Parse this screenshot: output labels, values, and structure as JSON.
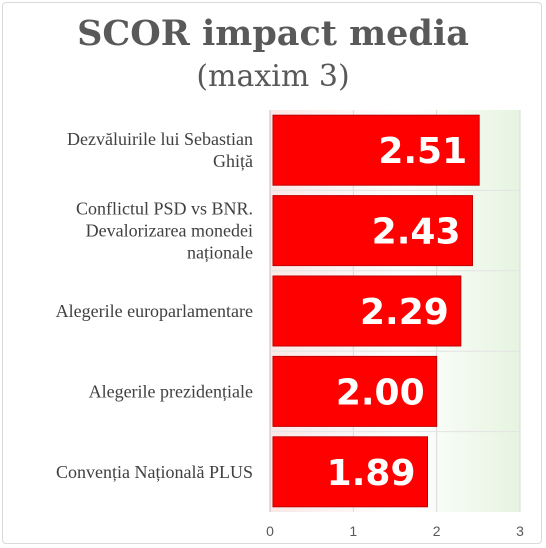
{
  "chart_data": {
    "type": "bar",
    "orientation": "horizontal",
    "title": "SCOR impact media",
    "subtitle": "(maxim 3)",
    "categories": [
      [
        "Dezvăluirile lui Sebastian",
        "Ghiță"
      ],
      [
        "Conflictul PSD vs BNR.",
        "Devalorizarea monedei",
        "naționale"
      ],
      [
        "Alegerile europarlamentare"
      ],
      [
        "Alegerile prezidențiale"
      ],
      [
        "Convenția Națională PLUS"
      ]
    ],
    "values": [
      2.51,
      2.43,
      2.29,
      2.0,
      1.89
    ],
    "value_labels": [
      "2.51",
      "2.43",
      "2.29",
      "2.00",
      "1.89"
    ],
    "xlim": [
      0,
      3
    ],
    "ticks": [
      "0",
      "1",
      "2",
      "3"
    ],
    "grid": "vertical",
    "bar_color": "#ff0000",
    "bar_border_color": "#c00000",
    "background_gradient": [
      "#fbe8e8",
      "#ffffff",
      "#e6f4e0"
    ]
  }
}
